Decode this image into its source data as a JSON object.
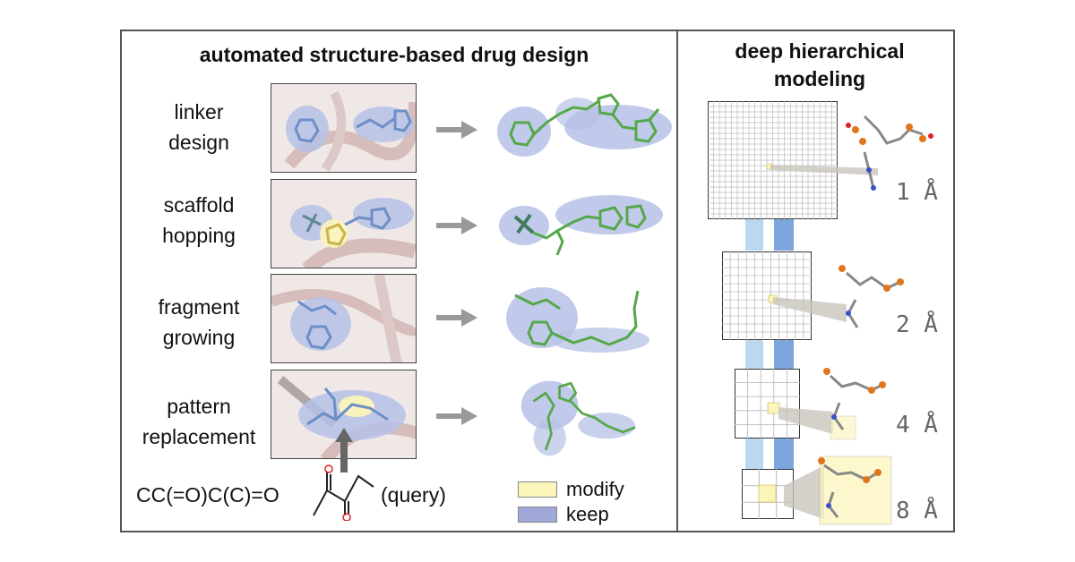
{
  "left_panel": {
    "title": "automated structure-based drug design",
    "tasks": [
      {
        "line1": "linker",
        "line2": "design"
      },
      {
        "line1": "scaffold",
        "line2": "hopping"
      },
      {
        "line1": "fragment",
        "line2": "growing"
      },
      {
        "line1": "pattern",
        "line2": "replacement"
      }
    ],
    "query_smiles": "CC(=O)C(C)=O",
    "query_label": "(query)",
    "legend": [
      {
        "label": "modify",
        "color": "#fbf5b9"
      },
      {
        "label": "keep",
        "color": "#9fa8d8"
      }
    ]
  },
  "right_panel": {
    "title_line1": "deep hierarchical",
    "title_line2": "modeling",
    "resolutions": [
      "1 Å",
      "2 Å",
      "4 Å",
      "8 Å"
    ]
  },
  "colors": {
    "frame": "#555555",
    "keep_blue": "#9fa8d8",
    "modify_yellow": "#fbf5b9",
    "ligand_green": "#55a84a",
    "ligand_blue": "#6d8fc7",
    "protein_pink": "#d9c4c2",
    "column_light": "#bcd8ee",
    "column_dark": "#7da6dc"
  }
}
